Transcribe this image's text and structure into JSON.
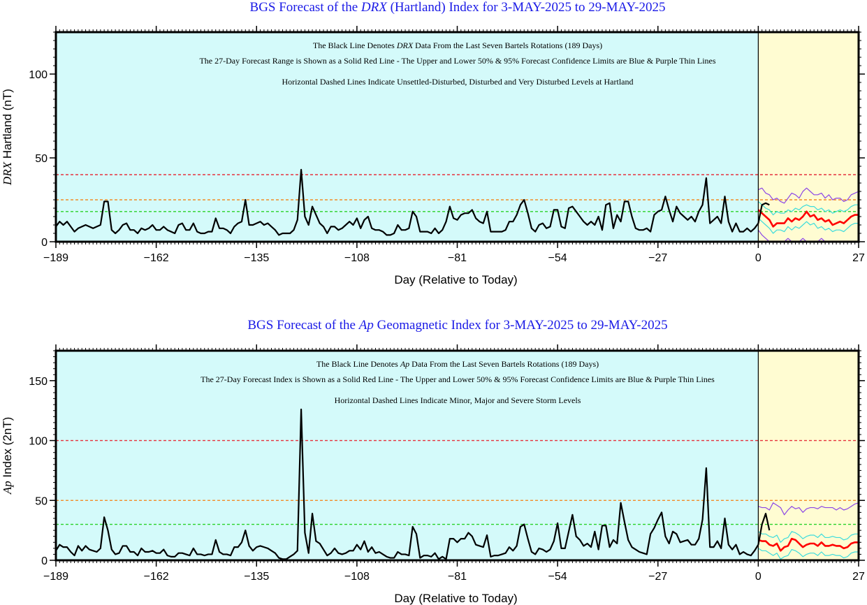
{
  "chart_data": [
    {
      "type": "line",
      "title": {
        "pre": "BGS Forecast of the ",
        "em": "DRX",
        "post": " (Hartland) Index for 3-MAY-2025 to 29-MAY-2025"
      },
      "notes": [
        {
          "pre": "The Black Line Denotes ",
          "em": "DRX",
          "post": " Data From the Last Seven Bartels Rotations (189 Days)"
        },
        {
          "pre": "The 27-Day Forecast Range is Shown as a Solid Red Line - The Upper and Lower 50% & 95% Forecast Confidence Limits are Blue & Purple Thin Lines",
          "em": "",
          "post": ""
        },
        {
          "pre": "Horizontal Dashed Lines Indicate Unsettled-Disturbed, Disturbed and Very Disturbed Levels at Hartland",
          "em": "",
          "post": ""
        }
      ],
      "xlabel": "Day (Relative to Today)",
      "ylabel": {
        "em": "DRX",
        "post": " Hartland (nT)"
      },
      "xlim": [
        -189,
        27
      ],
      "ylim": [
        0,
        125
      ],
      "xticks": [
        -189,
        -162,
        -135,
        -108,
        -81,
        -54,
        -27,
        0,
        27
      ],
      "xtick_labels": [
        "−189",
        "−162",
        "−135",
        "−108",
        "−81",
        "−54",
        "−27",
        "0",
        "27"
      ],
      "yticks": [
        0,
        50,
        100
      ],
      "ytick_labels": [
        "0",
        "50",
        "100"
      ],
      "thresholds": [
        {
          "value": 40,
          "color": "#e6323c"
        },
        {
          "value": 25,
          "color": "#f28c28"
        },
        {
          "value": 18,
          "color": "#28d228"
        }
      ],
      "colors": {
        "history_bg": "#d4fafa",
        "forecast_bg": "#fffcd2",
        "history": "#000000",
        "forecast": "#ff0000",
        "ci50": "#3cdcdc",
        "ci95": "#8c46e6"
      },
      "grid": false,
      "series": [
        {
          "role": "history",
          "x_start": -189,
          "values": [
            9,
            12,
            10,
            12,
            9,
            6,
            8,
            9,
            10,
            9,
            8,
            9,
            10,
            24,
            24,
            7,
            5,
            7,
            10,
            11,
            7,
            7,
            5,
            8,
            7,
            8,
            10,
            7,
            7,
            9,
            7,
            6,
            5,
            10,
            11,
            7,
            7,
            11,
            6,
            5,
            5,
            6,
            6,
            14,
            8,
            8,
            7,
            5,
            9,
            11,
            12,
            25,
            10,
            10,
            11,
            12,
            10,
            11,
            9,
            7,
            4,
            5,
            5,
            5,
            7,
            13,
            43,
            15,
            10,
            21,
            16,
            11,
            9,
            5,
            9,
            9,
            7,
            8,
            10,
            12,
            10,
            14,
            8,
            13,
            15,
            8,
            7,
            7,
            6,
            4,
            4,
            5,
            10,
            7,
            7,
            8,
            18,
            15,
            6,
            6,
            6,
            5,
            8,
            5,
            7,
            12,
            21,
            14,
            13,
            16,
            17,
            17,
            19,
            14,
            12,
            11,
            18,
            6,
            6,
            6,
            6,
            7,
            12,
            12,
            16,
            22,
            25,
            17,
            8,
            6,
            10,
            11,
            8,
            9,
            19,
            19,
            9,
            8,
            20,
            21,
            18,
            15,
            12,
            10,
            12,
            10,
            15,
            7,
            22,
            23,
            8,
            16,
            12,
            24,
            24,
            15,
            8,
            7,
            7,
            8,
            6,
            16,
            18,
            19,
            27,
            19,
            12,
            21,
            17,
            15,
            13,
            15,
            12,
            18,
            22,
            38,
            11,
            13,
            15,
            11,
            27,
            12,
            6,
            11,
            6,
            6,
            8,
            6,
            8,
            11,
            22,
            23,
            22
          ]
        },
        {
          "role": "forecast",
          "x_start": 0,
          "values": [
            19,
            17,
            15,
            13,
            9,
            11,
            11,
            11,
            14,
            12,
            14,
            13,
            15,
            18,
            15,
            16,
            13,
            14,
            12,
            13,
            10,
            11,
            12,
            11,
            13,
            15,
            16,
            16
          ]
        },
        {
          "role": "ci50-upper",
          "x_start": 0,
          "values": [
            24,
            22,
            20,
            19,
            16,
            18,
            17,
            17,
            19,
            18,
            20,
            19,
            21,
            22,
            21,
            21,
            19,
            20,
            18,
            19,
            17,
            18,
            19,
            18,
            19,
            21,
            22,
            22
          ]
        },
        {
          "role": "ci50-lower",
          "x_start": 0,
          "values": [
            14,
            12,
            10,
            8,
            5,
            7,
            7,
            6,
            9,
            7,
            9,
            8,
            10,
            12,
            10,
            11,
            8,
            9,
            7,
            8,
            6,
            7,
            7,
            6,
            8,
            10,
            11,
            11
          ]
        },
        {
          "role": "ci95-upper",
          "x_start": 0,
          "values": [
            31,
            32,
            29,
            28,
            25,
            26,
            24,
            23,
            26,
            29,
            28,
            26,
            30,
            32,
            30,
            28,
            28,
            29,
            26,
            28,
            25,
            26,
            26,
            24,
            25,
            28,
            29,
            30
          ]
        },
        {
          "role": "ci95-lower",
          "x_start": 0,
          "values": [
            7,
            4,
            2,
            0,
            0,
            0,
            0,
            0,
            2,
            0,
            0,
            0,
            2,
            0,
            0,
            0,
            0,
            2,
            0,
            0,
            0,
            0,
            0,
            0,
            0,
            0,
            0,
            0
          ]
        }
      ]
    },
    {
      "type": "line",
      "title": {
        "pre": "BGS Forecast of the ",
        "em": "Ap",
        "post": " Geomagnetic Index for 3-MAY-2025 to 29-MAY-2025"
      },
      "notes": [
        {
          "pre": "The Black Line Denotes ",
          "em": "Ap",
          "post": " Data From the Last Seven Bartels Rotations (189 Days)"
        },
        {
          "pre": "The 27-Day Forecast Index is Shown as a Solid Red Line - The Upper and Lower 50% & 95% Forecast Confidence Limits are Blue & Purple Thin Lines",
          "em": "",
          "post": ""
        },
        {
          "pre": "Horizontal Dashed Lines Indicate Minor, Major and Severe Storm Levels",
          "em": "",
          "post": ""
        }
      ],
      "xlabel": "Day (Relative to Today)",
      "ylabel": {
        "em": "Ap",
        "post": " Index (2nT)"
      },
      "xlim": [
        -189,
        27
      ],
      "ylim": [
        0,
        175
      ],
      "xticks": [
        -189,
        -162,
        -135,
        -108,
        -81,
        -54,
        -27,
        0,
        27
      ],
      "xtick_labels": [
        "−189",
        "−162",
        "−135",
        "−108",
        "−81",
        "−54",
        "−27",
        "0",
        "27"
      ],
      "yticks": [
        0,
        50,
        100,
        150
      ],
      "ytick_labels": [
        "0",
        "50",
        "100",
        "150"
      ],
      "thresholds": [
        {
          "value": 100,
          "color": "#e6323c"
        },
        {
          "value": 50,
          "color": "#f28c28"
        },
        {
          "value": 30,
          "color": "#28d228"
        }
      ],
      "colors": {
        "history_bg": "#d4fafa",
        "forecast_bg": "#fffcd2",
        "history": "#000000",
        "forecast": "#ff0000",
        "ci50": "#3cdcdc",
        "ci95": "#8c46e6"
      },
      "grid": false,
      "series": [
        {
          "role": "history",
          "x_start": -189,
          "values": [
            8,
            13,
            11,
            11,
            7,
            4,
            12,
            8,
            12,
            9,
            8,
            7,
            10,
            36,
            25,
            9,
            5,
            6,
            12,
            12,
            7,
            7,
            4,
            10,
            7,
            7,
            8,
            6,
            6,
            9,
            4,
            3,
            3,
            6,
            6,
            5,
            4,
            10,
            5,
            5,
            4,
            5,
            5,
            17,
            7,
            5,
            5,
            4,
            11,
            11,
            15,
            25,
            12,
            8,
            11,
            12,
            11,
            10,
            8,
            6,
            2,
            1,
            1,
            3,
            5,
            8,
            126,
            23,
            6,
            39,
            16,
            14,
            9,
            4,
            6,
            10,
            6,
            5,
            6,
            8,
            8,
            13,
            9,
            16,
            7,
            11,
            6,
            7,
            5,
            3,
            2,
            2,
            7,
            5,
            5,
            4,
            28,
            22,
            2,
            4,
            4,
            3,
            6,
            1,
            3,
            1,
            18,
            18,
            15,
            18,
            18,
            23,
            20,
            13,
            12,
            11,
            21,
            3,
            4,
            4,
            5,
            6,
            11,
            8,
            12,
            28,
            30,
            18,
            7,
            5,
            10,
            9,
            7,
            9,
            16,
            31,
            10,
            10,
            24,
            38,
            20,
            17,
            12,
            14,
            11,
            24,
            9,
            29,
            29,
            11,
            17,
            14,
            48,
            32,
            17,
            11,
            9,
            7,
            6,
            5,
            22,
            27,
            34,
            40,
            20,
            14,
            24,
            22,
            15,
            16,
            17,
            13,
            13,
            18,
            34,
            77,
            11,
            11,
            16,
            10,
            35,
            13,
            9,
            13,
            5,
            7,
            5,
            4,
            8,
            13,
            30,
            39,
            25
          ]
        },
        {
          "role": "forecast",
          "x_start": 0,
          "values": [
            17,
            16,
            16,
            13,
            12,
            14,
            8,
            11,
            12,
            18,
            17,
            14,
            11,
            13,
            14,
            14,
            12,
            15,
            12,
            12,
            13,
            12,
            12,
            10,
            11,
            14,
            15,
            15
          ]
        },
        {
          "role": "ci50-upper",
          "x_start": 0,
          "values": [
            24,
            22,
            22,
            20,
            19,
            21,
            15,
            18,
            19,
            24,
            23,
            21,
            18,
            20,
            21,
            21,
            19,
            22,
            19,
            19,
            20,
            19,
            19,
            17,
            18,
            21,
            22,
            22
          ]
        },
        {
          "role": "ci50-lower",
          "x_start": 0,
          "values": [
            10,
            8,
            8,
            6,
            4,
            6,
            1,
            3,
            4,
            9,
            8,
            6,
            3,
            5,
            6,
            6,
            4,
            7,
            4,
            4,
            5,
            4,
            4,
            2,
            3,
            6,
            7,
            7
          ]
        },
        {
          "role": "ci95-upper",
          "x_start": 0,
          "values": [
            45,
            44,
            44,
            42,
            48,
            46,
            44,
            38,
            42,
            45,
            43,
            44,
            40,
            43,
            44,
            44,
            43,
            45,
            44,
            44,
            44,
            42,
            44,
            42,
            43,
            45,
            47,
            48
          ]
        },
        {
          "role": "ci95-lower",
          "x_start": 0,
          "values": [
            0,
            0,
            0,
            0,
            0,
            0,
            0,
            0,
            0,
            0,
            0,
            0,
            0,
            0,
            0,
            0,
            0,
            0,
            0,
            0,
            0,
            0,
            0,
            0,
            0,
            0,
            0,
            0
          ]
        }
      ]
    }
  ]
}
